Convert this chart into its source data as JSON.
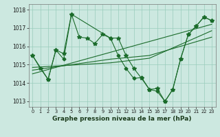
{
  "xlabel": "Graphe pression niveau de la mer (hPa)",
  "background_color": "#cce8e0",
  "grid_color": "#99ccbb",
  "line_color": "#1a6b2a",
  "ylim": [
    1012.7,
    1018.3
  ],
  "xlim": [
    -0.5,
    23.5
  ],
  "yticks": [
    1013,
    1014,
    1015,
    1016,
    1017,
    1018
  ],
  "xticks": [
    0,
    1,
    2,
    3,
    4,
    5,
    6,
    7,
    8,
    9,
    10,
    11,
    12,
    13,
    14,
    15,
    16,
    17,
    18,
    19,
    20,
    21,
    22,
    23
  ],
  "series": [
    {
      "x": [
        0,
        1,
        2,
        3,
        4,
        5,
        6,
        7,
        8,
        9,
        10,
        11,
        12,
        13,
        14,
        15,
        16,
        17,
        18,
        19,
        20,
        21,
        22,
        23
      ],
      "y": [
        1015.5,
        1014.8,
        1014.2,
        1015.8,
        1015.6,
        1017.75,
        1016.5,
        1016.45,
        1016.15,
        1016.65,
        1016.45,
        1016.45,
        1015.5,
        1014.8,
        1014.25,
        1013.65,
        1013.7,
        1013.0,
        1013.65,
        1015.3,
        1016.65,
        1017.1,
        1017.6,
        1017.4
      ],
      "style": "star"
    },
    {
      "x": [
        0,
        2,
        3,
        4,
        5,
        10,
        11,
        12,
        13,
        14,
        15,
        16,
        17,
        18,
        19,
        20,
        21,
        22,
        23
      ],
      "y": [
        1015.5,
        1014.2,
        1015.8,
        1015.3,
        1017.75,
        1016.45,
        1015.5,
        1014.8,
        1014.25,
        1014.3,
        1013.65,
        1013.55,
        1013.0,
        1013.65,
        1015.3,
        1016.65,
        1017.1,
        1017.6,
        1017.4
      ],
      "style": "diamond"
    },
    {
      "x": [
        0,
        23
      ],
      "y": [
        1014.5,
        1017.2
      ],
      "style": "plain"
    },
    {
      "x": [
        0,
        10,
        15,
        23
      ],
      "y": [
        1014.7,
        1015.3,
        1015.5,
        1016.5
      ],
      "style": "plain"
    },
    {
      "x": [
        0,
        10,
        15,
        23
      ],
      "y": [
        1014.85,
        1015.1,
        1015.35,
        1016.85
      ],
      "style": "plain"
    }
  ]
}
